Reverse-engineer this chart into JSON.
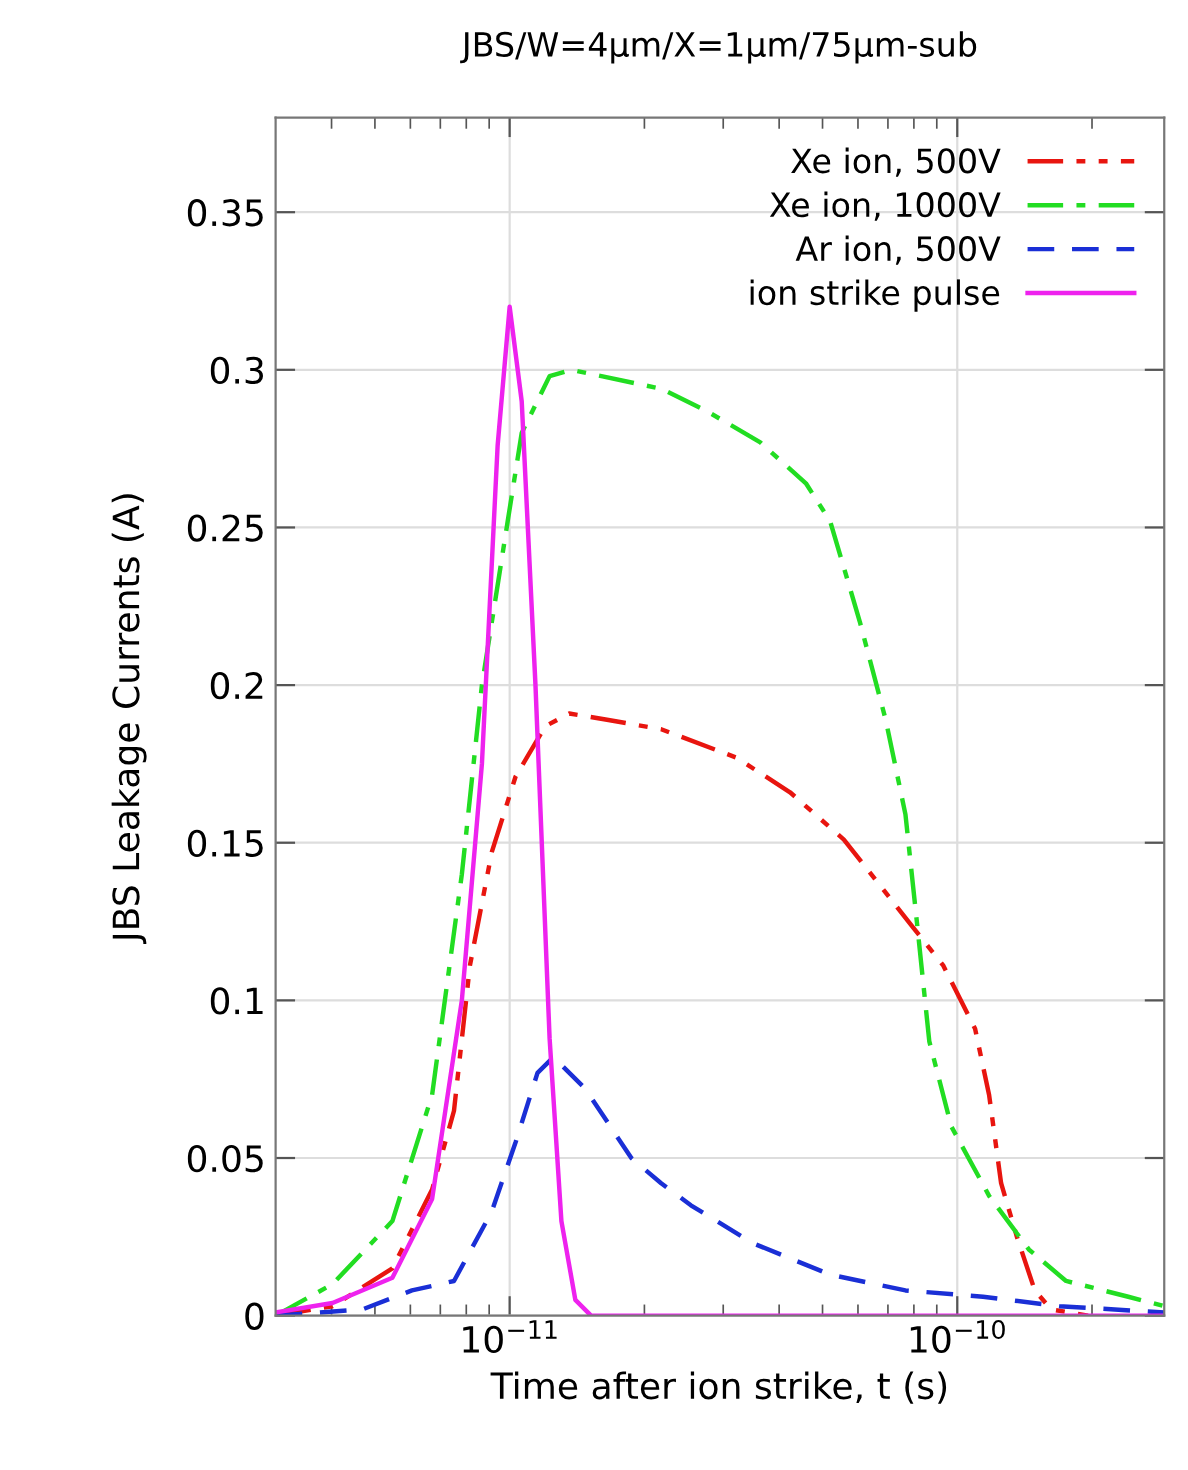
{
  "chart_data": {
    "type": "line",
    "title": "JBS/W=4µm/X=1µm/75µm-sub",
    "xlabel": "Time after ion strike, t (s)",
    "ylabel": "JBS Leakage Currents (A)",
    "log": "x",
    "grid": true,
    "legend": "top right",
    "xlim": [
      3e-12,
      2.9e-10
    ],
    "ylim": [
      0,
      0.38
    ],
    "xticks": [
      {
        "value": 4e-12,
        "label": null
      },
      {
        "value": 5e-12,
        "label": null
      },
      {
        "value": 6e-12,
        "label": null
      },
      {
        "value": 7e-12,
        "label": null
      },
      {
        "value": 8e-12,
        "label": null
      },
      {
        "value": 9e-12,
        "label": null
      },
      {
        "value": 1e-11,
        "label": "10$^{−11}$"
      },
      {
        "value": 2e-11,
        "label": null
      },
      {
        "value": 3e-11,
        "label": null
      },
      {
        "value": 4e-11,
        "label": null
      },
      {
        "value": 5e-11,
        "label": null
      },
      {
        "value": 6e-11,
        "label": null
      },
      {
        "value": 7e-11,
        "label": null
      },
      {
        "value": 8e-11,
        "label": null
      },
      {
        "value": 9e-11,
        "label": null
      },
      {
        "value": 1e-10,
        "label": "10$^{−10}$"
      },
      {
        "value": 2e-10,
        "label": null
      }
    ],
    "yticks": [
      0,
      0.05,
      0.1,
      0.15,
      0.2,
      0.25,
      0.3,
      0.35
    ],
    "series": [
      {
        "name": "Xe ion, 500V",
        "color": "#e8150f",
        "line_style": "dashdotdot",
        "x": [
          3e-12,
          4.02e-12,
          5.47e-12,
          6.71e-12,
          7.51e-12,
          8.15e-12,
          9.12e-12,
          1.031e-11,
          1.202e-11,
          1.359e-11,
          1.65e-11,
          2.18e-11,
          3.21e-11,
          4.23e-11,
          5.58e-11,
          6.85e-11,
          7.98e-11,
          9.31e-11,
          1.096e-10,
          1.178e-10,
          1.253e-10,
          1.359e-10,
          1.49e-10,
          1.62e-10,
          1.96e-10
        ],
        "values": [
          0,
          0.003,
          0.015,
          0.04,
          0.065,
          0.111,
          0.147,
          0.171,
          0.187,
          0.191,
          0.189,
          0.186,
          0.177,
          0.166,
          0.151,
          0.135,
          0.123,
          0.111,
          0.091,
          0.07,
          0.042,
          0.025,
          0.008,
          0.002,
          0
        ]
      },
      {
        "name": "Xe ion, 1000V",
        "color": "#22dd22",
        "line_style": "dashdot",
        "x": [
          3e-12,
          4.02e-12,
          5.47e-12,
          6.71e-12,
          7.82e-12,
          8.67e-12,
          9.9e-12,
          1.064e-11,
          1.228e-11,
          1.374e-11,
          2.18e-11,
          2.75e-11,
          3.63e-11,
          4.59e-11,
          5.2e-11,
          6.06e-11,
          6.92e-11,
          7.66e-11,
          8.15e-11,
          8.66e-11,
          9.7e-11,
          1.178e-10,
          1.445e-10,
          1.75e-10,
          2.41e-10,
          2.9e-10
        ],
        "values": [
          0,
          0.01,
          0.03,
          0.07,
          0.14,
          0.2,
          0.252,
          0.28,
          0.298,
          0.3,
          0.294,
          0.287,
          0.277,
          0.264,
          0.252,
          0.22,
          0.189,
          0.159,
          0.123,
          0.087,
          0.06,
          0.038,
          0.021,
          0.011,
          0.006,
          0.003
        ]
      },
      {
        "name": "Ar ion, 500V",
        "color": "#1a2fd6",
        "line_style": "dashed",
        "x": [
          3e-12,
          4.69e-12,
          6.05e-12,
          7.51e-12,
          9.12e-12,
          1.031e-11,
          1.154e-11,
          1.253e-11,
          1.475e-11,
          1.87e-11,
          2.18e-11,
          2.54e-11,
          3.49e-11,
          5.2e-11,
          7.66e-11,
          1.142e-10,
          1.69e-10,
          2.9e-10
        ],
        "values": [
          0,
          0.002,
          0.008,
          0.011,
          0.033,
          0.055,
          0.077,
          0.082,
          0.072,
          0.05,
          0.042,
          0.035,
          0.023,
          0.013,
          0.008,
          0.006,
          0.003,
          0.001
        ]
      },
      {
        "name": "ion strike pulse",
        "color": "#ee22ee",
        "line_style": "solid",
        "x": [
          3e-12,
          4.02e-12,
          5.47e-12,
          6.71e-12,
          7.82e-12,
          8.67e-12,
          9.4e-12,
          1e-11,
          1.064e-11,
          1.142e-11,
          1.228e-11,
          1.305e-11,
          1.402e-11,
          1.52e-11,
          2.9e-10
        ],
        "values": [
          0.001,
          0.004,
          0.012,
          0.037,
          0.1,
          0.175,
          0.276,
          0.32,
          0.29,
          0.2,
          0.088,
          0.03,
          0.005,
          0,
          0
        ]
      }
    ]
  }
}
